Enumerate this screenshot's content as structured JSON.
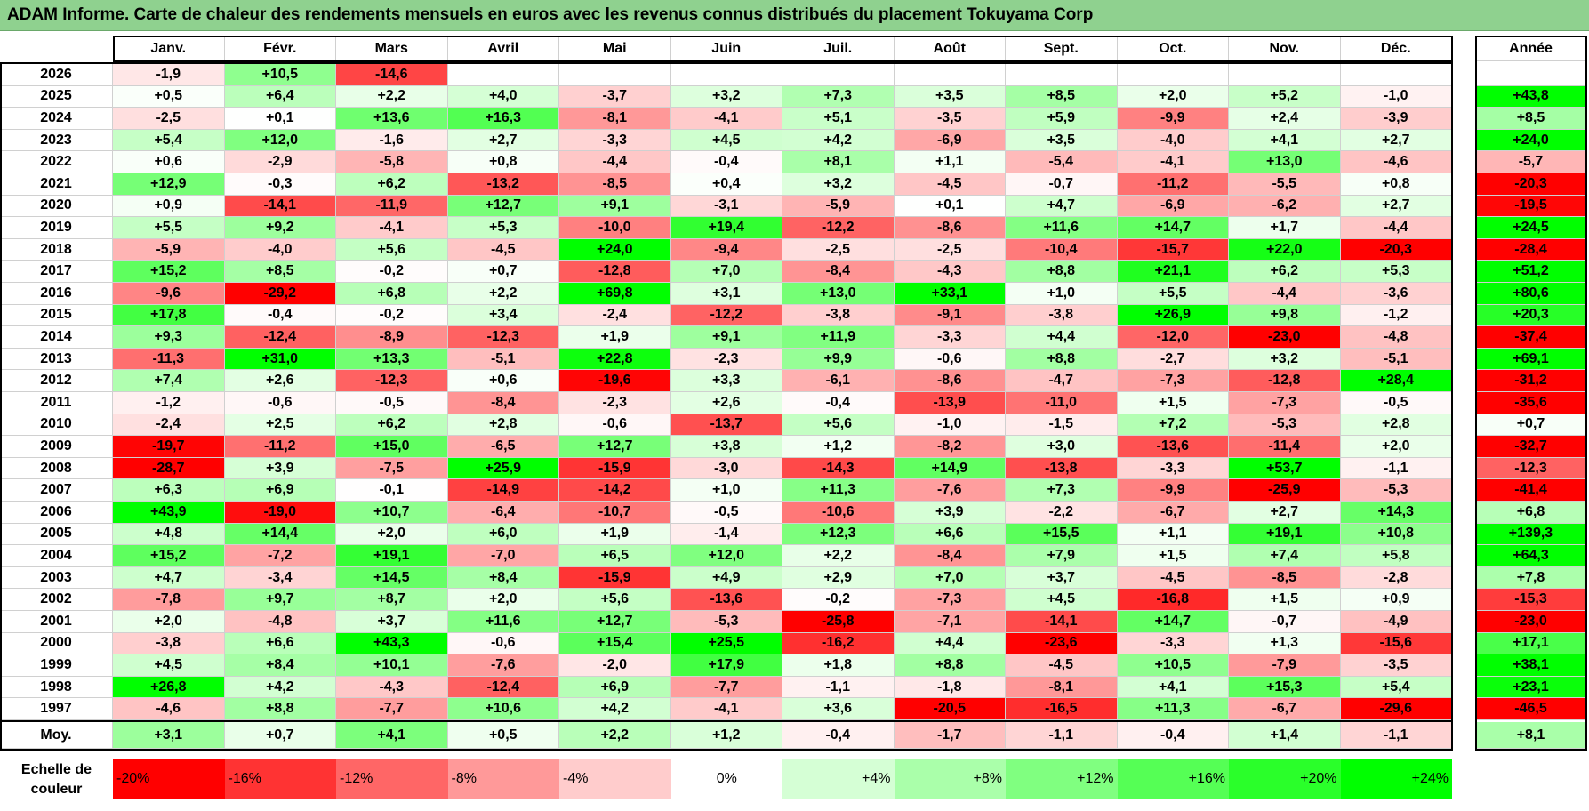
{
  "title": "ADAM Informe. Carte de chaleur des rendements mensuels en euros avec les revenus connus distribués du placement Tokuyama Corp",
  "chart_data": {
    "type": "heatmap",
    "title": "ADAM Informe. Carte de chaleur des rendements mensuels en euros avec les revenus connus distribués du placement Tokuyama Corp",
    "months": [
      "Janv.",
      "Févr.",
      "Mars",
      "Avril",
      "Mai",
      "Juin",
      "Juil.",
      "Août",
      "Sept.",
      "Oct.",
      "Nov.",
      "Déc."
    ],
    "annual_header": "Année",
    "rows": [
      {
        "year": "2026",
        "m": [
          "-1,9",
          "+10,5",
          "-14,6",
          "",
          "",
          "",
          "",
          "",
          "",
          "",
          "",
          ""
        ],
        "y": ""
      },
      {
        "year": "2025",
        "m": [
          "+0,5",
          "+6,4",
          "+2,2",
          "+4,0",
          "-3,7",
          "+3,2",
          "+7,3",
          "+3,5",
          "+8,5",
          "+2,0",
          "+5,2",
          "-1,0"
        ],
        "y": "+43,8"
      },
      {
        "year": "2024",
        "m": [
          "-2,5",
          "+0,1",
          "+13,6",
          "+16,3",
          "-8,1",
          "-4,1",
          "+5,1",
          "-3,5",
          "+5,9",
          "-9,9",
          "+2,4",
          "-3,9"
        ],
        "y": "+8,5"
      },
      {
        "year": "2023",
        "m": [
          "+5,4",
          "+12,0",
          "-1,6",
          "+2,7",
          "-3,3",
          "+4,5",
          "+4,2",
          "-6,9",
          "+3,5",
          "-4,0",
          "+4,1",
          "+2,7"
        ],
        "y": "+24,0"
      },
      {
        "year": "2022",
        "m": [
          "+0,6",
          "-2,9",
          "-5,8",
          "+0,8",
          "-4,4",
          "-0,4",
          "+8,1",
          "+1,1",
          "-5,4",
          "-4,1",
          "+13,0",
          "-4,6"
        ],
        "y": "-5,7"
      },
      {
        "year": "2021",
        "m": [
          "+12,9",
          "-0,3",
          "+6,2",
          "-13,2",
          "-8,5",
          "+0,4",
          "+3,2",
          "-4,5",
          "-0,7",
          "-11,2",
          "-5,5",
          "+0,8"
        ],
        "y": "-20,3"
      },
      {
        "year": "2020",
        "m": [
          "+0,9",
          "-14,1",
          "-11,9",
          "+12,7",
          "+9,1",
          "-3,1",
          "-5,9",
          "+0,1",
          "+4,7",
          "-6,9",
          "-6,2",
          "+2,7"
        ],
        "y": "-19,5"
      },
      {
        "year": "2019",
        "m": [
          "+5,5",
          "+9,2",
          "-4,1",
          "+5,3",
          "-10,0",
          "+19,4",
          "-12,2",
          "-8,6",
          "+11,6",
          "+14,7",
          "+1,7",
          "-4,4"
        ],
        "y": "+24,5"
      },
      {
        "year": "2018",
        "m": [
          "-5,9",
          "-4,0",
          "+5,6",
          "-4,5",
          "+24,0",
          "-9,4",
          "-2,5",
          "-2,5",
          "-10,4",
          "-15,7",
          "+22,0",
          "-20,3"
        ],
        "y": "-28,4"
      },
      {
        "year": "2017",
        "m": [
          "+15,2",
          "+8,5",
          "-0,2",
          "+0,7",
          "-12,8",
          "+7,0",
          "-8,4",
          "-4,3",
          "+8,8",
          "+21,1",
          "+6,2",
          "+5,3"
        ],
        "y": "+51,2"
      },
      {
        "year": "2016",
        "m": [
          "-9,6",
          "-29,2",
          "+6,8",
          "+2,2",
          "+69,8",
          "+3,1",
          "+13,0",
          "+33,1",
          "+1,0",
          "+5,5",
          "-4,4",
          "-3,6"
        ],
        "y": "+80,6"
      },
      {
        "year": "2015",
        "m": [
          "+17,8",
          "-0,4",
          "-0,2",
          "+3,4",
          "-2,4",
          "-12,2",
          "-3,8",
          "-9,1",
          "-3,8",
          "+26,9",
          "+9,8",
          "-1,2"
        ],
        "y": "+20,3"
      },
      {
        "year": "2014",
        "m": [
          "+9,3",
          "-12,4",
          "-8,9",
          "-12,3",
          "+1,9",
          "+9,1",
          "+11,9",
          "-3,3",
          "+4,4",
          "-12,0",
          "-23,0",
          "-4,8"
        ],
        "y": "-37,4"
      },
      {
        "year": "2013",
        "m": [
          "-11,3",
          "+31,0",
          "+13,3",
          "-5,1",
          "+22,8",
          "-2,3",
          "+9,9",
          "-0,6",
          "+8,8",
          "-2,7",
          "+3,2",
          "-5,1"
        ],
        "y": "+69,1"
      },
      {
        "year": "2012",
        "m": [
          "+7,4",
          "+2,6",
          "-12,3",
          "+0,6",
          "-19,6",
          "+3,3",
          "-6,1",
          "-8,6",
          "-4,7",
          "-7,3",
          "-12,8",
          "+28,4"
        ],
        "y": "-31,2"
      },
      {
        "year": "2011",
        "m": [
          "-1,2",
          "-0,6",
          "-0,5",
          "-8,4",
          "-2,3",
          "+2,6",
          "-0,4",
          "-13,9",
          "-11,0",
          "+1,5",
          "-7,3",
          "-0,5"
        ],
        "y": "-35,6"
      },
      {
        "year": "2010",
        "m": [
          "-2,4",
          "+2,5",
          "+6,2",
          "+2,8",
          "-0,6",
          "-13,7",
          "+5,6",
          "-1,0",
          "-1,5",
          "+7,2",
          "-5,3",
          "+2,8"
        ],
        "y": "+0,7"
      },
      {
        "year": "2009",
        "m": [
          "-19,7",
          "-11,2",
          "+15,0",
          "-6,5",
          "+12,7",
          "+3,8",
          "+1,2",
          "-8,2",
          "+3,0",
          "-13,6",
          "-11,4",
          "+2,0"
        ],
        "y": "-32,7"
      },
      {
        "year": "2008",
        "m": [
          "-28,7",
          "+3,9",
          "-7,5",
          "+25,9",
          "-15,9",
          "-3,0",
          "-14,3",
          "+14,9",
          "-13,8",
          "-3,3",
          "+53,7",
          "-1,1"
        ],
        "y": "-12,3"
      },
      {
        "year": "2007",
        "m": [
          "+6,3",
          "+6,9",
          "-0,1",
          "-14,9",
          "-14,2",
          "+1,0",
          "+11,3",
          "-7,6",
          "+7,3",
          "-9,9",
          "-25,9",
          "-5,3"
        ],
        "y": "-41,4"
      },
      {
        "year": "2006",
        "m": [
          "+43,9",
          "-19,0",
          "+10,7",
          "-6,4",
          "-10,7",
          "-0,5",
          "-10,6",
          "+3,9",
          "-2,2",
          "-6,7",
          "+2,7",
          "+14,3"
        ],
        "y": "+6,8"
      },
      {
        "year": "2005",
        "m": [
          "+4,8",
          "+14,4",
          "+2,0",
          "+6,0",
          "+1,9",
          "-1,4",
          "+12,3",
          "+6,6",
          "+15,5",
          "+1,1",
          "+19,1",
          "+10,8"
        ],
        "y": "+139,3"
      },
      {
        "year": "2004",
        "m": [
          "+15,2",
          "-7,2",
          "+19,1",
          "-7,0",
          "+6,5",
          "+12,0",
          "+2,2",
          "-8,4",
          "+7,9",
          "+1,5",
          "+7,4",
          "+5,8"
        ],
        "y": "+64,3"
      },
      {
        "year": "2003",
        "m": [
          "+4,7",
          "-3,4",
          "+14,5",
          "+8,4",
          "-15,9",
          "+4,9",
          "+2,9",
          "+7,0",
          "+3,7",
          "-4,5",
          "-8,5",
          "-2,8"
        ],
        "y": "+7,8"
      },
      {
        "year": "2002",
        "m": [
          "-7,8",
          "+9,7",
          "+8,7",
          "+2,0",
          "+5,6",
          "-13,6",
          "-0,2",
          "-7,3",
          "+4,5",
          "-16,8",
          "+1,5",
          "+0,9"
        ],
        "y": "-15,3"
      },
      {
        "year": "2001",
        "m": [
          "+2,0",
          "-4,8",
          "+3,7",
          "+11,6",
          "+12,7",
          "-5,3",
          "-25,8",
          "-7,1",
          "-14,1",
          "+14,7",
          "-0,7",
          "-4,9"
        ],
        "y": "-23,0"
      },
      {
        "year": "2000",
        "m": [
          "-3,8",
          "+6,6",
          "+43,3",
          "-0,6",
          "+15,4",
          "+25,5",
          "-16,2",
          "+4,4",
          "-23,6",
          "-3,3",
          "+1,3",
          "-15,6"
        ],
        "y": "+17,1"
      },
      {
        "year": "1999",
        "m": [
          "+4,5",
          "+8,4",
          "+10,1",
          "-7,6",
          "-2,0",
          "+17,9",
          "+1,8",
          "+8,8",
          "-4,5",
          "+10,5",
          "-7,9",
          "-3,5"
        ],
        "y": "+38,1"
      },
      {
        "year": "1998",
        "m": [
          "+26,8",
          "+4,2",
          "-4,3",
          "-12,4",
          "+6,9",
          "-7,7",
          "-1,1",
          "-1,8",
          "-8,1",
          "+4,1",
          "+15,3",
          "+5,4"
        ],
        "y": "+23,1"
      },
      {
        "year": "1997",
        "m": [
          "-4,6",
          "+8,8",
          "-7,7",
          "+10,6",
          "+4,2",
          "-4,1",
          "+3,6",
          "-20,5",
          "-16,5",
          "+11,3",
          "-6,7",
          "-29,6"
        ],
        "y": "-46,5"
      }
    ],
    "average": {
      "label": "Moy.",
      "m": [
        "+3,1",
        "+0,7",
        "+4,1",
        "+0,5",
        "+2,2",
        "+1,2",
        "-0,4",
        "-1,7",
        "-1,1",
        "-0,4",
        "+1,4",
        "-1,1"
      ],
      "y": "+8,1"
    },
    "scale": {
      "label": "Echelle de couleur",
      "items": [
        "-20%",
        "-16%",
        "-12%",
        "-8%",
        "-4%",
        "0%",
        "+4%",
        "+8%",
        "+12%",
        "+16%",
        "+20%",
        "+24%"
      ]
    }
  }
}
